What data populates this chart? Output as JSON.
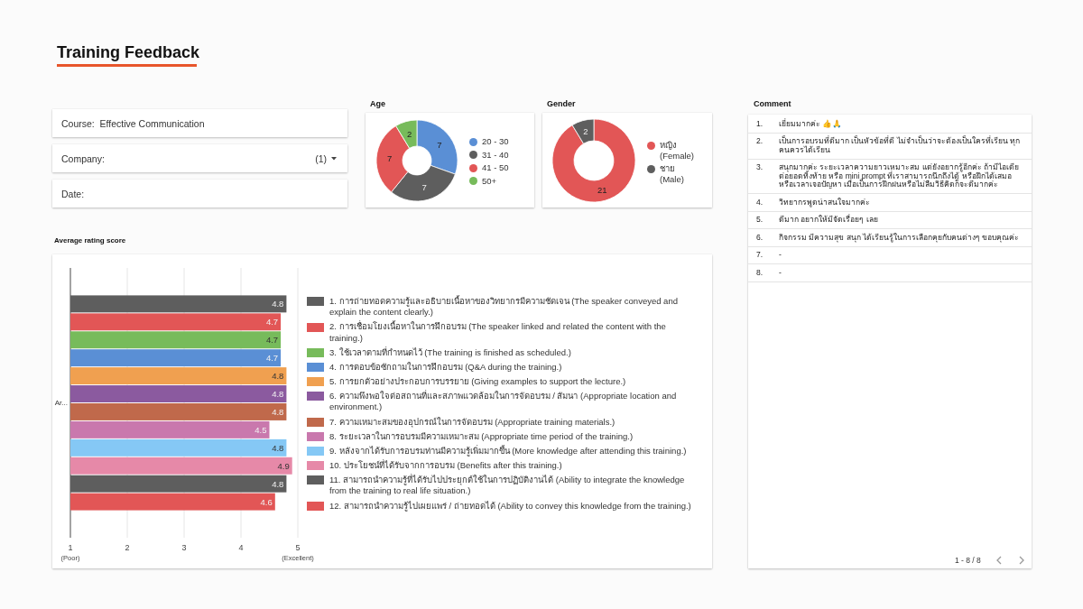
{
  "chart_data": [
    {
      "type": "other",
      "title": "Training Feedback",
      "annotations": [
        "Course:  Effective Communication",
        "Company:",
        "(1)",
        "Date:"
      ]
    },
    {
      "type": "donut",
      "title": "Age",
      "categories": [
        "20 - 30",
        "31 - 40",
        "41 - 50",
        "50+"
      ],
      "values": [
        7,
        7,
        7,
        2
      ],
      "colors": [
        "#5a8fd5",
        "#5e5e5e",
        "#e25656",
        "#77bb5b"
      ],
      "data_labels": true,
      "legend": "right"
    },
    {
      "type": "donut",
      "title": "Gender",
      "categories": [
        "หญิง (Female)",
        "ชาย (Male)"
      ],
      "values": [
        21,
        2
      ],
      "colors": [
        "#e25656",
        "#5e5e5e"
      ],
      "data_labels": true,
      "legend": "right"
    },
    {
      "type": "other",
      "title": "Comment",
      "categories": [
        "1.",
        "2.",
        "3.",
        "4.",
        "5.",
        "6.",
        "7.",
        "8."
      ],
      "annotations": [
        "เยี่ยมมากค่ะ 👍🙏",
        "เป็นการอบรมที่ดีมาก เป็นหัวข้อที่ดี ไม่จำเป็นว่าจะต้องเป็นใครที่เรียน ทุกคนควรได้เรียน",
        "สนุกมากค่ะ ระยะเวลาความยาวเหมาะสม แต่ยังอยากรู้อีกค่ะ ถ้ามีไอเดียต่อยอดทิ้งท้าย หรือ mini prompt ที่เราสามารถนึกถึงได้ หรือฝึกได้เสมอหรือเวลาเจอปัญหา เมื่อเป็นการฝึกฝนหรือไม่ลืมวิธีคิดก็จะดีมากค่ะ",
        "วิทยากรพูดน่าสนใจมากค่ะ",
        "ดีมาก อยากให้มีจัดเรื่อยๆ เลย",
        "กิจกรรม มีความสุข สนุก ได้เรียนรู้ในการเลือกคุยกับคนต่างๆ ขอบคุณค่ะ",
        "-",
        "-",
        "1 - 8 / 8"
      ]
    },
    {
      "type": "bar",
      "title": "Average rating score",
      "orientation": "horizontal",
      "categories": [
        "Ar..."
      ],
      "series": [
        {
          "name": "1. การถ่ายทอดความรู้และอธิบายเนื้อหาของวิทยากรมีความชัดเจน (The speaker conveyed and explain the content clearly.)",
          "color": "#5e5e5e",
          "values": [
            4.8
          ]
        },
        {
          "name": "2. การเชื่อมโยงเนื้อหาในการฝึกอบรม (The speaker linked and related the content with the training.)",
          "color": "#e25656",
          "values": [
            4.7
          ]
        },
        {
          "name": "3. ใช้เวลาตามที่กำหนดไว้ (The training is finished as scheduled.)",
          "color": "#77bb5b",
          "values": [
            4.7
          ]
        },
        {
          "name": "4. การตอบข้อซักถามในการฝึกอบรม (Q&A during the training.)",
          "color": "#5a8fd5",
          "values": [
            4.7
          ]
        },
        {
          "name": "5. การยกตัวอย่างประกอบการบรรยาย (Giving examples to support the lecture.)",
          "color": "#f0a050",
          "values": [
            4.8
          ]
        },
        {
          "name": "6. ความพึงพอใจต่อสถานที่และสภาพแวดล้อมในการจัดอบรม / สัมนา (Appropriate location and environment.)",
          "color": "#8b5a9f",
          "values": [
            4.8
          ]
        },
        {
          "name": "7. ความเหมาะสมของอุปกรณ์ในการจัดอบรม (Appropriate training materials.)",
          "color": "#c0694b",
          "values": [
            4.8
          ]
        },
        {
          "name": "8. ระยะเวลาในการอบรมมีความเหมาะสม (Appropriate time period of the training.)",
          "color": "#c978ad",
          "values": [
            4.5
          ]
        },
        {
          "name": "9. หลังจากได้รับการอบรมท่านมีความรู้เพิ่มมากขึ้น (More knowledge after attending this training.)",
          "color": "#85c8f5",
          "values": [
            4.8
          ]
        },
        {
          "name": "10. ประโยชน์ที่ได้รับจากการอบรม (Benefits after this training.)",
          "color": "#e689a8",
          "values": [
            4.9
          ]
        },
        {
          "name": "11. สามารถนำความรู้ที่ได้รับไปประยุกต์ใช้ในการปฏิบัติงานได้ (Ability to integrate the knowledge from the training to real life situation.)",
          "color": "#5e5e5e",
          "values": [
            4.8
          ]
        },
        {
          "name": "12. สามารถนำความรู้ไปเผยแพร่ / ถ่ายทอดได้ (Ability to convey this knowledge from the training.)",
          "color": "#e25656",
          "values": [
            4.6
          ]
        }
      ],
      "xlim": [
        1,
        5
      ],
      "xticks": [
        {
          "value": 1,
          "label": "1\n(Poor)"
        },
        2,
        3,
        4,
        {
          "value": 5,
          "label": "5\n(Excellent)"
        }
      ],
      "grid": "x",
      "data_labels": true,
      "legend": "right"
    }
  ]
}
